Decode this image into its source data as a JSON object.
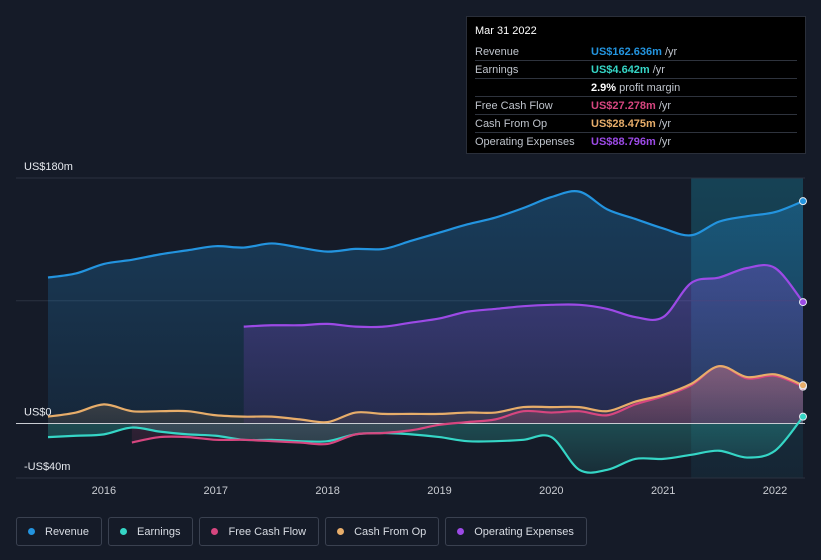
{
  "tooltip": {
    "date": "Mar 31 2022",
    "rows": [
      {
        "label": "Revenue",
        "value": "US$162.636m",
        "unit": "/yr",
        "color": "#2394df"
      },
      {
        "label": "Earnings",
        "value": "US$4.642m",
        "unit": "/yr",
        "color": "#35d6c6"
      },
      {
        "label": "",
        "value": "2.9%",
        "unit": "profit margin",
        "color": "#ffffff"
      },
      {
        "label": "Free Cash Flow",
        "value": "US$27.278m",
        "unit": "/yr",
        "color": "#d6467f"
      },
      {
        "label": "Cash From Op",
        "value": "US$28.475m",
        "unit": "/yr",
        "color": "#e7ad6a"
      },
      {
        "label": "Operating Expenses",
        "value": "US$88.796m",
        "unit": "/yr",
        "color": "#9c4ae6"
      }
    ]
  },
  "legend": [
    {
      "label": "Revenue",
      "color": "#2394df"
    },
    {
      "label": "Earnings",
      "color": "#35d6c6"
    },
    {
      "label": "Free Cash Flow",
      "color": "#d6467f"
    },
    {
      "label": "Cash From Op",
      "color": "#e7ad6a"
    },
    {
      "label": "Operating Expenses",
      "color": "#9c4ae6"
    }
  ],
  "chart_data": {
    "type": "area",
    "title": "",
    "xlabel": "",
    "ylabel": "",
    "y_unit": "US$ millions",
    "ylim": [
      -40,
      180
    ],
    "xlim": [
      2015.5,
      2022.25
    ],
    "y_tick_labels": [
      {
        "value": 180,
        "label": "US$180m"
      },
      {
        "value": 0,
        "label": "US$0"
      },
      {
        "value": -40,
        "label": "-US$40m"
      }
    ],
    "x_ticks": [
      2016,
      2017,
      2018,
      2019,
      2020,
      2021,
      2022
    ],
    "x_tick_labels": [
      "2016",
      "2017",
      "2018",
      "2019",
      "2020",
      "2021",
      "2022"
    ],
    "highlight_range": [
      2021.25,
      2022.25
    ],
    "series": [
      {
        "name": "Revenue",
        "color": "#2394df",
        "points": [
          [
            2015.5,
            107
          ],
          [
            2015.75,
            110
          ],
          [
            2016.0,
            117
          ],
          [
            2016.25,
            120
          ],
          [
            2016.5,
            124
          ],
          [
            2016.75,
            127
          ],
          [
            2017.0,
            130
          ],
          [
            2017.25,
            129
          ],
          [
            2017.5,
            132
          ],
          [
            2017.75,
            129
          ],
          [
            2018.0,
            126
          ],
          [
            2018.25,
            128
          ],
          [
            2018.5,
            128
          ],
          [
            2018.75,
            134
          ],
          [
            2019.0,
            140
          ],
          [
            2019.25,
            146
          ],
          [
            2019.5,
            151
          ],
          [
            2019.75,
            158
          ],
          [
            2020.0,
            166
          ],
          [
            2020.25,
            170
          ],
          [
            2020.5,
            157
          ],
          [
            2020.75,
            150
          ],
          [
            2021.0,
            143
          ],
          [
            2021.25,
            138
          ],
          [
            2021.5,
            148
          ],
          [
            2021.75,
            152
          ],
          [
            2022.0,
            155
          ],
          [
            2022.25,
            163
          ]
        ]
      },
      {
        "name": "Earnings",
        "color": "#35d6c6",
        "points": [
          [
            2015.5,
            -10
          ],
          [
            2015.75,
            -9
          ],
          [
            2016.0,
            -8
          ],
          [
            2016.25,
            -3
          ],
          [
            2016.5,
            -6
          ],
          [
            2016.75,
            -8
          ],
          [
            2017.0,
            -9
          ],
          [
            2017.25,
            -12
          ],
          [
            2017.5,
            -12
          ],
          [
            2017.75,
            -13
          ],
          [
            2018.0,
            -13
          ],
          [
            2018.25,
            -8
          ],
          [
            2018.5,
            -7
          ],
          [
            2018.75,
            -8
          ],
          [
            2019.0,
            -10
          ],
          [
            2019.25,
            -13
          ],
          [
            2019.5,
            -13
          ],
          [
            2019.75,
            -12
          ],
          [
            2020.0,
            -10
          ],
          [
            2020.25,
            -34
          ],
          [
            2020.5,
            -34
          ],
          [
            2020.75,
            -26
          ],
          [
            2021.0,
            -26
          ],
          [
            2021.25,
            -23
          ],
          [
            2021.5,
            -20
          ],
          [
            2021.75,
            -25
          ],
          [
            2022.0,
            -20
          ],
          [
            2022.25,
            5
          ]
        ]
      },
      {
        "name": "Free Cash Flow",
        "color": "#d6467f",
        "points": [
          [
            2016.25,
            -14
          ],
          [
            2016.5,
            -10
          ],
          [
            2016.75,
            -10
          ],
          [
            2017.0,
            -12
          ],
          [
            2017.25,
            -12
          ],
          [
            2017.5,
            -13
          ],
          [
            2017.75,
            -14
          ],
          [
            2018.0,
            -15
          ],
          [
            2018.25,
            -8
          ],
          [
            2018.5,
            -7
          ],
          [
            2018.75,
            -5
          ],
          [
            2019.0,
            -1
          ],
          [
            2019.25,
            1
          ],
          [
            2019.5,
            3
          ],
          [
            2019.75,
            9
          ],
          [
            2020.0,
            8
          ],
          [
            2020.25,
            9
          ],
          [
            2020.5,
            6
          ],
          [
            2020.75,
            14
          ],
          [
            2021.0,
            20
          ],
          [
            2021.25,
            28
          ],
          [
            2021.5,
            42
          ],
          [
            2021.75,
            33
          ],
          [
            2022.0,
            35
          ],
          [
            2022.25,
            27
          ]
        ]
      },
      {
        "name": "Cash From Op",
        "color": "#e7ad6a",
        "points": [
          [
            2015.5,
            5
          ],
          [
            2015.75,
            8
          ],
          [
            2016.0,
            14
          ],
          [
            2016.25,
            9
          ],
          [
            2016.5,
            9
          ],
          [
            2016.75,
            9
          ],
          [
            2017.0,
            6
          ],
          [
            2017.25,
            5
          ],
          [
            2017.5,
            5
          ],
          [
            2017.75,
            3
          ],
          [
            2018.0,
            1
          ],
          [
            2018.25,
            8
          ],
          [
            2018.5,
            7
          ],
          [
            2018.75,
            7
          ],
          [
            2019.0,
            7
          ],
          [
            2019.25,
            8
          ],
          [
            2019.5,
            8
          ],
          [
            2019.75,
            12
          ],
          [
            2020.0,
            12
          ],
          [
            2020.25,
            12
          ],
          [
            2020.5,
            9
          ],
          [
            2020.75,
            16
          ],
          [
            2021.0,
            21
          ],
          [
            2021.25,
            29
          ],
          [
            2021.5,
            42
          ],
          [
            2021.75,
            34
          ],
          [
            2022.0,
            36
          ],
          [
            2022.25,
            28
          ]
        ]
      },
      {
        "name": "Operating Expenses",
        "color": "#9c4ae6",
        "points": [
          [
            2017.25,
            71
          ],
          [
            2017.5,
            72
          ],
          [
            2017.75,
            72
          ],
          [
            2018.0,
            73
          ],
          [
            2018.25,
            71
          ],
          [
            2018.5,
            71
          ],
          [
            2018.75,
            74
          ],
          [
            2019.0,
            77
          ],
          [
            2019.25,
            82
          ],
          [
            2019.5,
            84
          ],
          [
            2019.75,
            86
          ],
          [
            2020.0,
            87
          ],
          [
            2020.25,
            87
          ],
          [
            2020.5,
            84
          ],
          [
            2020.75,
            78
          ],
          [
            2021.0,
            78
          ],
          [
            2021.25,
            103
          ],
          [
            2021.5,
            107
          ],
          [
            2021.75,
            114
          ],
          [
            2022.0,
            114
          ],
          [
            2022.25,
            89
          ]
        ]
      }
    ]
  }
}
